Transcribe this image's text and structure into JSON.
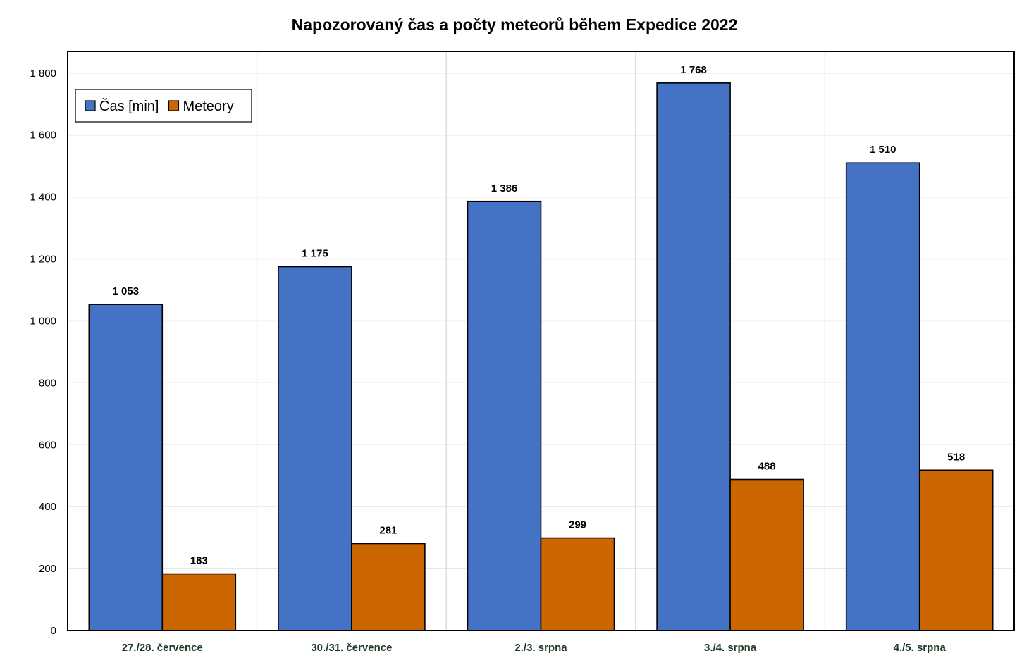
{
  "chart_data": {
    "type": "bar",
    "title": "Napozorovaný čas a počty meteorů během Expedice 2022",
    "xlabel": "",
    "ylabel": "",
    "categories": [
      "27./28. července",
      "30./31. července",
      "2./3. srpna",
      "3./4. srpna",
      "4./5. srpna"
    ],
    "series": [
      {
        "name": "Čas [min]",
        "color": "#4472C4",
        "values": [
          1053,
          1175,
          1386,
          1768,
          1510
        ],
        "labels": [
          "1 053",
          "1 175",
          "1 386",
          "1 768",
          "1 510"
        ]
      },
      {
        "name": "Meteory",
        "color": "#CC6600",
        "values": [
          183,
          281,
          299,
          488,
          518
        ],
        "labels": [
          "183",
          "281",
          "299",
          "488",
          "518"
        ]
      }
    ],
    "ylim": [
      0,
      1870
    ],
    "yticks": [
      0,
      200,
      400,
      600,
      800,
      1000,
      1200,
      1400,
      1600,
      1800
    ],
    "ytick_labels": [
      "0",
      "200",
      "400",
      "600",
      "800",
      "1 000",
      "1 200",
      "1 400",
      "1 600",
      "1 800"
    ],
    "grid": true,
    "legend_position": "top-left"
  }
}
